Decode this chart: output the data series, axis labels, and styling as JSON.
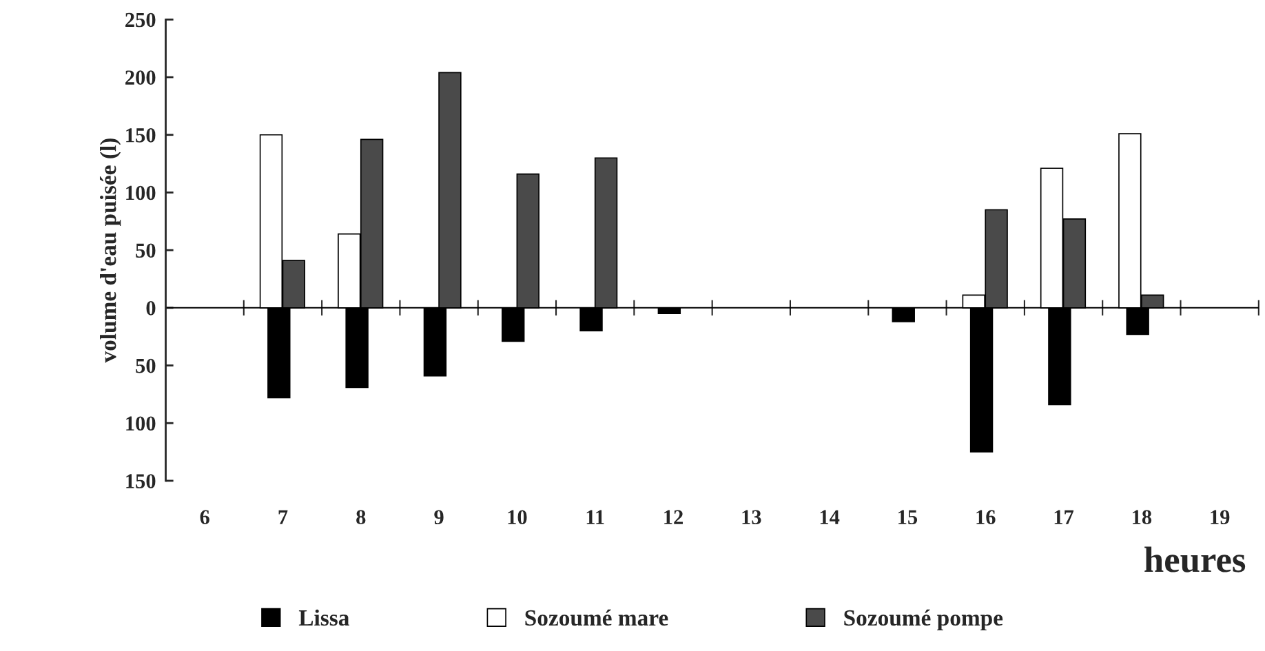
{
  "chart_data": {
    "type": "bar",
    "xlabel": "heures",
    "ylabel": "volume d'eau puisée (l)",
    "categories": [
      "6",
      "7",
      "8",
      "9",
      "10",
      "11",
      "12",
      "13",
      "14",
      "15",
      "16",
      "17",
      "18",
      "19"
    ],
    "series": [
      {
        "name": "Lissa",
        "color": "#000000",
        "values": [
          null,
          -78,
          -69,
          -59,
          -29,
          -20,
          -5,
          null,
          null,
          -12,
          -125,
          -84,
          -23,
          null
        ]
      },
      {
        "name": "Sozoumé mare",
        "color": "#ffffff",
        "values": [
          null,
          150,
          64,
          null,
          null,
          null,
          null,
          null,
          null,
          null,
          11,
          121,
          151,
          null
        ]
      },
      {
        "name": "Sozoumé pompe",
        "color": "#4a4a4a",
        "values": [
          null,
          41,
          146,
          204,
          116,
          130,
          null,
          null,
          null,
          null,
          85,
          77,
          11,
          null
        ]
      }
    ],
    "ylim": [
      -150,
      250
    ],
    "yticks": [
      {
        "value": -150,
        "label": "150"
      },
      {
        "value": -100,
        "label": "100"
      },
      {
        "value": -50,
        "label": "50"
      },
      0,
      50,
      100,
      150,
      200,
      250
    ],
    "ref_lines": [
      {
        "axis": "y",
        "value": 0,
        "color": "#000000"
      }
    ],
    "grid": false,
    "legend": "bottom"
  }
}
